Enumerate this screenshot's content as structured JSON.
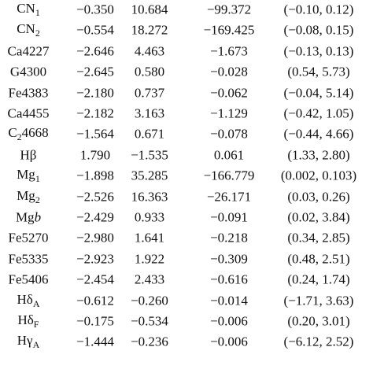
{
  "table": {
    "rows": [
      {
        "label": [
          {
            "text": "CN"
          },
          {
            "text": "1",
            "style": "sub"
          }
        ],
        "values": [
          "−0.350",
          "10.684",
          "−99.372",
          "(−0.10, 0.12)"
        ]
      },
      {
        "label": [
          {
            "text": "CN"
          },
          {
            "text": "2",
            "style": "sub"
          }
        ],
        "values": [
          "−0.554",
          "18.272",
          "−169.425",
          "(−0.08, 0.15)"
        ]
      },
      {
        "label": [
          {
            "text": "Ca4227"
          }
        ],
        "values": [
          "−2.646",
          "4.463",
          "−1.673",
          "(−0.13, 0.13)"
        ]
      },
      {
        "label": [
          {
            "text": "G4300"
          }
        ],
        "values": [
          "−2.645",
          "0.580",
          "−0.028",
          "(0.54, 5.73)"
        ]
      },
      {
        "label": [
          {
            "text": "Fe4383"
          }
        ],
        "values": [
          "−2.180",
          "0.737",
          "−0.062",
          "(−0.04, 5.14)"
        ]
      },
      {
        "label": [
          {
            "text": "Ca4455"
          }
        ],
        "values": [
          "−2.182",
          "3.163",
          "−1.129",
          "(−0.42, 1.05)"
        ]
      },
      {
        "label": [
          {
            "text": "C"
          },
          {
            "text": "2",
            "style": "sub"
          },
          {
            "text": "4668"
          }
        ],
        "values": [
          "−1.564",
          "0.671",
          "−0.078",
          "(−0.44, 4.66)"
        ]
      },
      {
        "label": [
          {
            "text": "Hβ"
          }
        ],
        "values": [
          "1.790",
          "−1.535",
          "0.061",
          "(1.33, 2.80)"
        ]
      },
      {
        "label": [
          {
            "text": "Mg"
          },
          {
            "text": "1",
            "style": "sub"
          }
        ],
        "values": [
          "−1.898",
          "35.285",
          "−166.779",
          "(0.002, 0.103)"
        ]
      },
      {
        "label": [
          {
            "text": "Mg"
          },
          {
            "text": "2",
            "style": "sub"
          }
        ],
        "values": [
          "−2.526",
          "16.363",
          "−26.171",
          "(0.03, 0.26)"
        ]
      },
      {
        "label": [
          {
            "text": "Mg"
          },
          {
            "text": "b",
            "style": "italic"
          }
        ],
        "values": [
          "−2.429",
          "0.933",
          "−0.091",
          "(0.02, 3.84)"
        ]
      },
      {
        "label": [
          {
            "text": "Fe5270"
          }
        ],
        "values": [
          "−2.980",
          "1.641",
          "−0.218",
          "(0.34, 2.85)"
        ]
      },
      {
        "label": [
          {
            "text": "Fe5335"
          }
        ],
        "values": [
          "−2.923",
          "1.922",
          "−0.309",
          "(0.48, 2.51)"
        ]
      },
      {
        "label": [
          {
            "text": "Fe5406"
          }
        ],
        "values": [
          "−2.454",
          "2.433",
          "−0.616",
          "(0.24, 1.74)"
        ]
      },
      {
        "label": [
          {
            "text": "Hδ"
          },
          {
            "text": "A",
            "style": "sub"
          }
        ],
        "values": [
          "−0.612",
          "−0.260",
          "−0.014",
          "(−1.71, 3.63)"
        ]
      },
      {
        "label": [
          {
            "text": "Hδ"
          },
          {
            "text": "F",
            "style": "sub"
          }
        ],
        "values": [
          "−0.175",
          "−0.534",
          "−0.006",
          "(0.20, 3.01)"
        ]
      },
      {
        "label": [
          {
            "text": "Hγ"
          },
          {
            "text": "A",
            "style": "sub"
          }
        ],
        "values": [
          "−1.444",
          "−0.236",
          "−0.006",
          "(−6.12, 2.52)"
        ]
      }
    ]
  }
}
